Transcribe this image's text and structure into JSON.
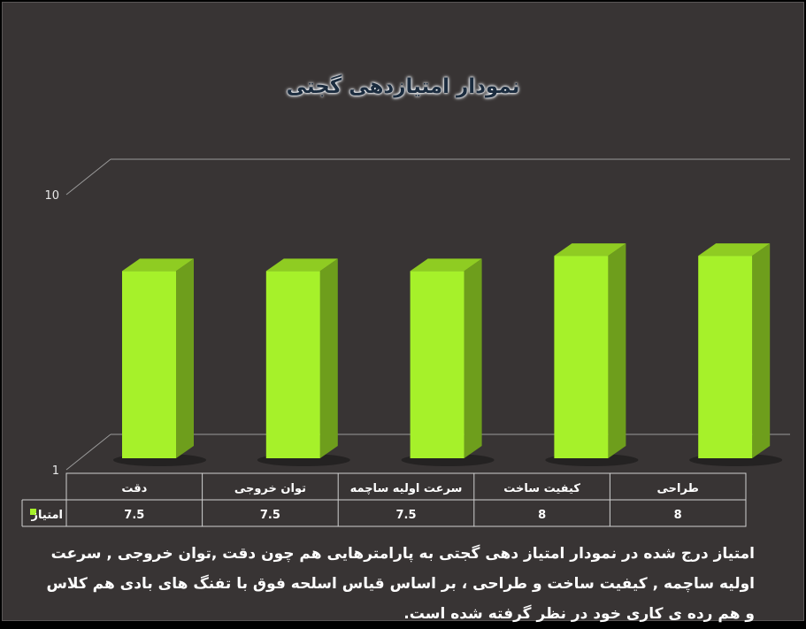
{
  "chart_data": {
    "type": "bar",
    "title": "نمودار امتیازدهی گجتی",
    "categories": [
      "دقت",
      "توان خروجی",
      "سرعت اولیه ساچمه",
      "کیفیت ساخت",
      "طراحی"
    ],
    "series": [
      {
        "name": "امتیاز",
        "values": [
          7.5,
          7.5,
          7.5,
          8,
          8
        ],
        "color": "#a6f12a"
      }
    ],
    "value_labels": [
      "7.5",
      "7.5",
      "7.5",
      "8",
      "8"
    ],
    "yticks": [
      "10",
      "1"
    ],
    "ylim": [
      1,
      10
    ],
    "grid": true,
    "legend": "data-table",
    "colors": {
      "background": "#383434",
      "bar_front": "#a6f12a",
      "bar_side": "#6e9e1c",
      "bar_top": "#8fcc22",
      "title_text": "#1b2c3f",
      "text": "#ffffff",
      "grid": "#9a9a9a"
    }
  },
  "caption": "امتیاز درج شده در نمودار امتیاز دهی گجتی  به پارامترهایی هم چون دقت ,توان خروجی , سرعت اولیه ساچمه , کیفیت ساخت و طراحی ، بر اساس قیاس اسلحه فوق با تفنگ های بادی هم کلاس و هم رده ی کاری خود در نظر گرفته شده است."
}
